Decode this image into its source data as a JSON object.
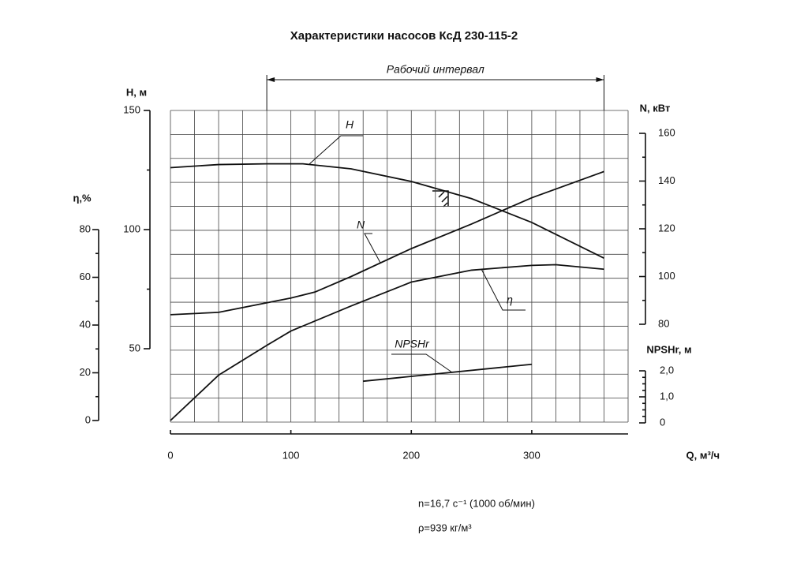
{
  "chart_data": {
    "type": "line",
    "title": "Характеристики насосов КсД 230-115-2",
    "x_label": "Q, м³/ч",
    "xlim": [
      0,
      380
    ],
    "xticks": [
      0,
      100,
      200,
      300
    ],
    "axes": [
      {
        "label": "H, м",
        "lim": [
          50,
          150
        ],
        "ticks": [
          50,
          100,
          150
        ]
      },
      {
        "label": "η,%",
        "lim": [
          0,
          80
        ],
        "ticks": [
          0,
          20,
          40,
          60,
          80
        ]
      },
      {
        "label": "N, кВт",
        "lim": [
          80,
          160
        ],
        "ticks": [
          80,
          100,
          120,
          140,
          160
        ]
      },
      {
        "label": "NPSHr, м",
        "lim": [
          0,
          2
        ],
        "ticks": [
          0,
          {
            "value": 1,
            "label": "1,0"
          },
          {
            "value": 2,
            "label": "2,0"
          }
        ]
      }
    ],
    "series": [
      {
        "name": "H",
        "axis": 0,
        "color": "#111111",
        "x": [
          0,
          40,
          80,
          110,
          150,
          200,
          250,
          300,
          360
        ],
        "values": [
          126,
          127.3,
          127.6,
          127.6,
          125.5,
          120.2,
          113,
          103,
          88
        ]
      },
      {
        "name": "N",
        "axis": 2,
        "color": "#111111",
        "x": [
          0,
          40,
          100,
          120,
          150,
          200,
          250,
          300,
          360
        ],
        "values": [
          84,
          85,
          91,
          93.5,
          100,
          111.7,
          122,
          133,
          144
        ]
      },
      {
        "name": "η",
        "axis": 1,
        "color": "#111111",
        "x": [
          0,
          40,
          80,
          100,
          150,
          200,
          250,
          300,
          320,
          360
        ],
        "values": [
          0,
          19,
          31.5,
          37.5,
          48,
          58,
          63,
          65,
          65.3,
          63.4
        ]
      },
      {
        "name": "NPSHr",
        "axis": 3,
        "color": "#111111",
        "x": [
          160,
          300
        ],
        "values": [
          1.6,
          2.25
        ]
      }
    ],
    "operating_range": {
      "label": "Рабочий интервал",
      "x": [
        80,
        360
      ]
    },
    "notes": [
      "n=16,7 с⁻¹ (1000 об/мин)",
      "ρ=939 кг/м³"
    ],
    "grid": true
  }
}
